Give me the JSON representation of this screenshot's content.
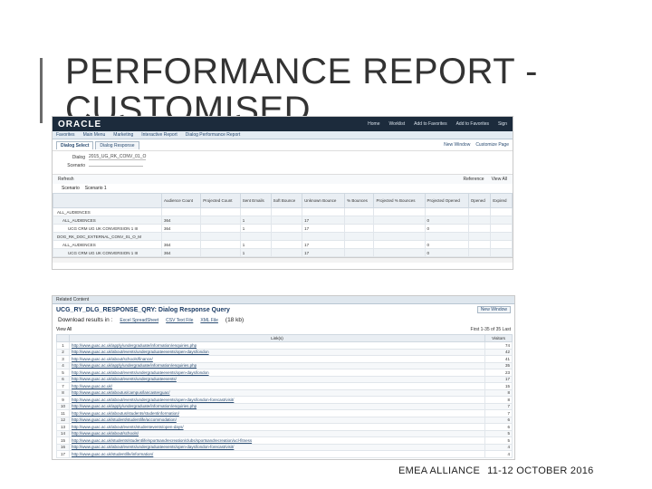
{
  "slide": {
    "title": "PERFORMANCE REPORT - CUSTOMISED",
    "footer_event": "EMEA ALLIANCE",
    "footer_date": "11-12 OCTOBER 2016"
  },
  "app": {
    "logo": "ORACLE",
    "top_links": [
      "Home",
      "Worklist",
      "Add to Favorites",
      "Add to Favorites",
      "Sign"
    ],
    "breadcrumb_tabs": [
      "Favorites",
      "Main Menu",
      "Marketing",
      "Interactive Report",
      "Dialog Performance Report"
    ],
    "subtabs": [
      "Dialog Select",
      "Dialog Response"
    ],
    "new_window": "New Window",
    "customize": "Customize Page",
    "dialog_label": "Dialog",
    "dialog_value": "2015_UG_RK_CONV_01_O",
    "scenario_label": "Scenario",
    "refresh_label": "Refresh",
    "refresh_link": "Reference",
    "view_all": "View All",
    "scenario_row_label": "Scenario",
    "scenario_row_value": "Scenario 1",
    "columns": [
      "",
      "Audience Count",
      "Projected Count",
      "Sent Emails",
      "Soft Bounce",
      "Unknown Bounce",
      "% Bounces",
      "Projected % Bounces",
      "Projected Opened",
      "Opened",
      "Expired"
    ],
    "rows": [
      {
        "name": "ALL_AUDIENCES",
        "values": [
          "",
          "",
          "",
          "",
          "",
          "",
          "",
          "",
          "",
          ""
        ]
      },
      {
        "name": "ALL_AUDIENCES",
        "values": [
          "364",
          "",
          "1",
          "",
          "17",
          "",
          "",
          "0",
          "",
          ""
        ]
      },
      {
        "name": "UCG CRM UG UK CONVERSION 1 III",
        "values": [
          "364",
          "",
          "1",
          "",
          "17",
          "",
          "",
          "0",
          "",
          ""
        ]
      },
      {
        "name": "DOG_RK_DOC_EXTERNAL_CONV_01_O_M",
        "values": [
          "",
          "",
          "",
          "",
          "",
          "",
          "",
          "",
          "",
          ""
        ]
      },
      {
        "name": "ALL_AUDIENCES",
        "values": [
          "364",
          "",
          "1",
          "",
          "17",
          "",
          "",
          "0",
          "",
          ""
        ]
      },
      {
        "name": "UCG CRM UG UK CONVERSION 1 III",
        "values": [
          "364",
          "",
          "1",
          "",
          "17",
          "",
          "",
          "0",
          "",
          ""
        ]
      }
    ]
  },
  "links_report": {
    "related_content": "Related Content",
    "title": "UCG_RY_DLG_RESPONSE_QRY: Dialog Response Query",
    "new_window": "New Window",
    "download_label": "Download results in :",
    "download_excel": "Excel SpreadSheet",
    "download_csv": "CSV Text File",
    "download_xml": "XML File",
    "download_size": "(18 kb)",
    "view_all": "View All",
    "pager": "First 1-35 of 35 Last",
    "col_link": "Link(s)",
    "col_visitors": "Visitors",
    "rows": [
      {
        "n": "1",
        "url": "http://www.guac.ac.uk/apply/undergraduate/information/enquiries.php",
        "v": "74"
      },
      {
        "n": "2",
        "url": "http://www.guac.ac.uk/about/events/undergraduateevents/open-days/london",
        "v": "42"
      },
      {
        "n": "3",
        "url": "http://www.guac.ac.uk/about/schools/finance/",
        "v": "41"
      },
      {
        "n": "4",
        "url": "http://www.guac.ac.uk/apply/undergraduate/information/enquiries.php",
        "v": "35"
      },
      {
        "n": "5",
        "url": "http://www.guac.ac.uk/about/events/undergraduateevents/open-days/london",
        "v": "23"
      },
      {
        "n": "6",
        "url": "http://www.guac.ac.uk/about/events/undergraduateevents/",
        "v": "17"
      },
      {
        "n": "7",
        "url": "http://www.guac.ac.uk/",
        "v": "15"
      },
      {
        "n": "8",
        "url": "http://www.guac.ac.uk/aboutus/campus/lancasterguac/",
        "v": "8"
      },
      {
        "n": "9",
        "url": "http://www.guac.ac.uk/about/events/undergraduateevents/open-days/london-forecast/visit/",
        "v": "8"
      },
      {
        "n": "10",
        "url": "http://www.guac.ac.uk/apply/undergraduate/information/enquiries.php",
        "v": "7"
      },
      {
        "n": "11",
        "url": "http://www.guac.ac.uk/aboutus/students/studentinformation/",
        "v": "7"
      },
      {
        "n": "12",
        "url": "http://www.guac.ac.uk/student/studentlife/accommodation/",
        "v": "6"
      },
      {
        "n": "13",
        "url": "http://www.guac.ac.uk/about/events/studentevents/open-days/",
        "v": "6"
      },
      {
        "n": "14",
        "url": "http://www.guac.ac.uk/about/schools/",
        "v": "5"
      },
      {
        "n": "15",
        "url": "http://www.guac.ac.uk/students/studentlife/sportsandrecreation/clubs/sportsandrecreation/ucl-fitness",
        "v": "5"
      },
      {
        "n": "16",
        "url": "http://www.guac.ac.uk/about/events/undergraduateevents/open-days/london-forecast/visit/",
        "v": "4"
      },
      {
        "n": "17",
        "url": "http://www.guac.ac.uk/studentlife/information/",
        "v": "4"
      }
    ]
  }
}
